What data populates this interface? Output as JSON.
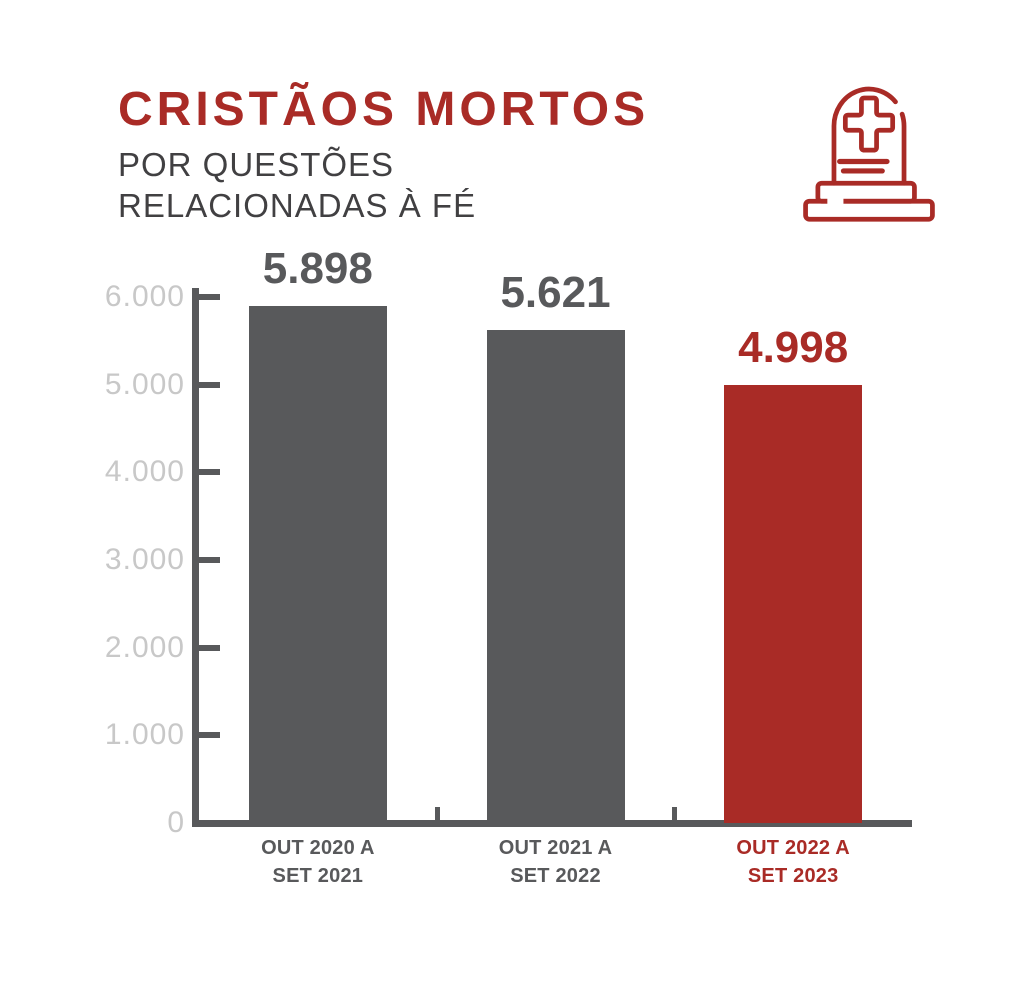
{
  "page": {
    "background": "#FFFFFF"
  },
  "colors": {
    "accent_red": "#A92B26",
    "bar_gray": "#58595B",
    "subtitle_gray": "#414042",
    "axis_gray": "#58595B",
    "tick_label_gray": "#C8C8C8"
  },
  "header": {
    "title": "CRISTÃOS MORTOS",
    "subtitle_line1": "POR QUESTÕES",
    "subtitle_line2": "RELACIONADAS À FÉ",
    "icon": "tombstone-cross-icon"
  },
  "chart_data": {
    "type": "bar",
    "title": "CRISTÃOS MORTOS POR QUESTÕES RELACIONADAS À FÉ",
    "categories": [
      "OUT 2020 A SET 2021",
      "OUT 2021 A SET 2022",
      "OUT 2022 A SET 2023"
    ],
    "category_lines": [
      [
        "OUT 2020 A",
        "SET 2021"
      ],
      [
        "OUT 2021 A",
        "SET 2022"
      ],
      [
        "OUT 2022 A",
        "SET 2023"
      ]
    ],
    "values": [
      5898,
      5621,
      4998
    ],
    "value_labels": [
      "5.898",
      "5.621",
      "4.998"
    ],
    "bar_colors": [
      "#58595B",
      "#58595B",
      "#A92B26"
    ],
    "category_label_colors": [
      "#58595B",
      "#58595B",
      "#A92B26"
    ],
    "highlight_index": 2,
    "ylim": [
      0,
      6000
    ],
    "yticks": [
      0,
      1000,
      2000,
      3000,
      4000,
      5000,
      6000
    ],
    "ytick_labels": [
      "0",
      "1.000",
      "2.000",
      "3.000",
      "4.000",
      "5.000",
      "6.000"
    ],
    "xlabel": "",
    "ylabel": "",
    "grid": false,
    "legend": "none"
  }
}
